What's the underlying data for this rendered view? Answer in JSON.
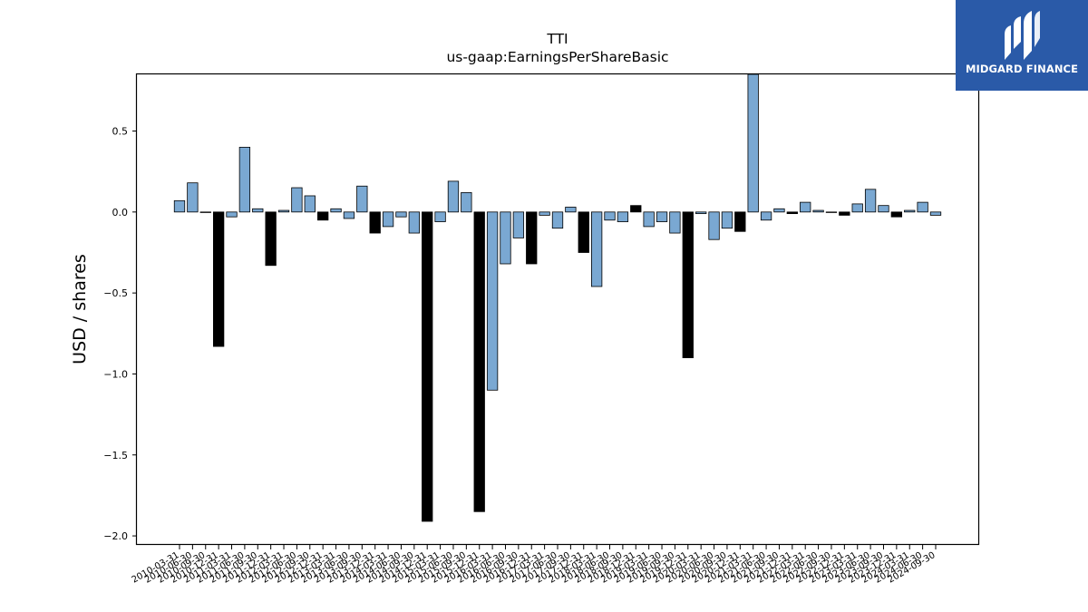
{
  "chart_data": {
    "type": "bar",
    "title": "TTI",
    "subtitle": "us-gaap:EarningsPerShareBasic",
    "xlabel": "",
    "ylabel": "USD / shares",
    "ylim": [
      -2.05,
      0.85
    ],
    "yticks": [
      0.5,
      0.0,
      -0.5,
      -1.0,
      -1.5,
      -2.0
    ],
    "ytick_labels": [
      "0.5",
      "0.0",
      "−0.5",
      "−1.0",
      "−1.5",
      "−2.0"
    ],
    "grid": false,
    "legend": "none",
    "categories": [
      "2010-03-31",
      "2010-06-30",
      "2010-09-30",
      "2010-12-31",
      "2011-03-31",
      "2011-06-30",
      "2011-09-30",
      "2011-12-31",
      "2012-03-31",
      "2012-06-30",
      "2012-09-30",
      "2012-12-31",
      "2013-03-31",
      "2013-06-30",
      "2013-09-30",
      "2013-12-31",
      "2014-03-31",
      "2014-06-30",
      "2014-09-30",
      "2014-12-31",
      "2015-03-31",
      "2015-06-30",
      "2015-09-30",
      "2015-12-31",
      "2016-03-31",
      "2016-06-30",
      "2016-09-30",
      "2016-12-31",
      "2017-03-31",
      "2017-06-30",
      "2017-09-30",
      "2017-12-31",
      "2018-03-31",
      "2018-06-30",
      "2018-09-30",
      "2018-12-31",
      "2019-03-31",
      "2019-06-30",
      "2019-09-30",
      "2019-12-31",
      "2020-03-31",
      "2020-06-30",
      "2020-09-30",
      "2020-12-31",
      "2021-03-31",
      "2021-06-30",
      "2021-09-30",
      "2021-12-31",
      "2022-03-31",
      "2022-06-30",
      "2022-09-30",
      "2022-12-31",
      "2023-03-31",
      "2023-06-30",
      "2023-09-30",
      "2023-12-31",
      "2024-03-31",
      "2024-06-30",
      "2024-09-30"
    ],
    "values": [
      0.07,
      0.18,
      0.0,
      -0.83,
      -0.03,
      0.4,
      0.02,
      -0.33,
      0.01,
      0.15,
      0.1,
      -0.05,
      0.02,
      -0.04,
      0.16,
      -0.13,
      -0.09,
      -0.03,
      -0.13,
      -1.91,
      -0.06,
      0.19,
      0.12,
      -1.85,
      -1.1,
      -0.32,
      -0.16,
      -0.32,
      -0.02,
      -0.1,
      0.03,
      -0.25,
      -0.46,
      -0.05,
      -0.06,
      0.04,
      -0.09,
      -0.06,
      -0.13,
      -0.9,
      -0.01,
      -0.17,
      -0.1,
      -0.12,
      0.95,
      -0.05,
      0.02,
      -0.01,
      0.06,
      0.01,
      0.0,
      -0.02,
      0.05,
      0.14,
      0.04,
      -0.03,
      0.01,
      0.06,
      -0.02
    ],
    "highlight": [
      3,
      7,
      11,
      15,
      19,
      23,
      27,
      31,
      35,
      39,
      43,
      47,
      51,
      55
    ],
    "colors": {
      "bar": "#7aa8d2",
      "highlight": "#000000",
      "edge": "#000000",
      "axis": "#000000"
    }
  },
  "logo": {
    "text": "MIDGARD FINANCE",
    "background": "#2a5aa8"
  }
}
